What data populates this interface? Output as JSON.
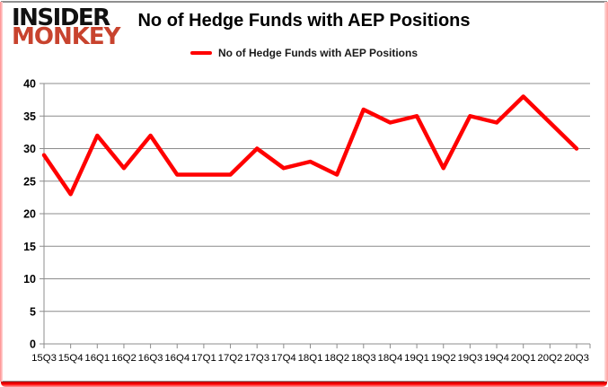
{
  "branding": {
    "logo_line1": "INSIDER",
    "logo_line2": "MONKEY",
    "logo_color_primary": "#111111",
    "logo_color_secondary": "#c8432e"
  },
  "header": {
    "title": "No of Hedge Funds with AEP Positions"
  },
  "legend": {
    "label": "No of Hedge Funds with AEP Positions",
    "swatch_color": "#ff0000"
  },
  "chart_data": {
    "type": "line",
    "title": "No of Hedge Funds with AEP Positions",
    "categories": [
      "15Q3",
      "15Q4",
      "16Q1",
      "16Q2",
      "16Q3",
      "16Q4",
      "17Q1",
      "17Q2",
      "17Q3",
      "17Q4",
      "18Q1",
      "18Q2",
      "18Q3",
      "18Q4",
      "19Q1",
      "19Q2",
      "19Q3",
      "19Q4",
      "20Q1",
      "20Q2",
      "20Q3"
    ],
    "series": [
      {
        "name": "No of Hedge Funds with AEP Positions",
        "color": "#ff0000",
        "values": [
          29,
          23,
          32,
          27,
          32,
          26,
          26,
          26,
          30,
          27,
          28,
          26,
          36,
          34,
          35,
          27,
          35,
          34,
          38,
          34,
          30
        ]
      }
    ],
    "xlabel": "",
    "ylabel": "",
    "ylim": [
      0,
      40
    ],
    "yticks": [
      0,
      5,
      10,
      15,
      20,
      25,
      30,
      35,
      40
    ],
    "grid": true,
    "legend_position": "top",
    "axis_color": "#8c8c8c",
    "tick_label_color": "#000000"
  }
}
